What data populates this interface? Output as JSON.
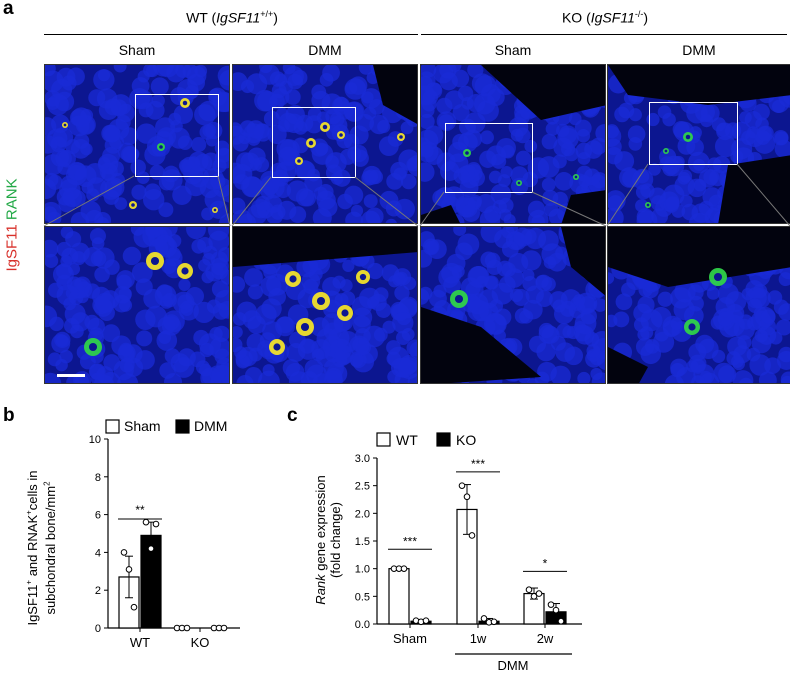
{
  "panel_a": {
    "letter": "a",
    "wt_group": {
      "prefix": "WT (",
      "gene": "IgSF11",
      "sup": "+/+",
      "suffix": ")"
    },
    "ko_group": {
      "prefix": "KO (",
      "gene": "IgSF11",
      "sup": "-/-",
      "suffix": ")"
    },
    "columns": [
      "Sham",
      "DMM",
      "Sham",
      "DMM"
    ],
    "stain_red": "IgSF11",
    "stain_green": "RANK",
    "colors": {
      "nuclei": "#1a2bd6",
      "rank": "#2fd14a",
      "merge": "#f2e22a",
      "igsf11": "#d8302a"
    }
  },
  "panel_b": {
    "letter": "b",
    "legend": [
      "Sham",
      "DMM"
    ],
    "ylabel_parts": {
      "a": "IgSF11",
      "a_sup": "+",
      "b": " and RNAK",
      "b_sup": "+",
      "c": "cells in",
      "line2": "subchondral bone/mm",
      "line2_sup": "2"
    },
    "sig": "**"
  },
  "panel_c": {
    "letter": "c",
    "legend": [
      "WT",
      "KO"
    ],
    "ylabel_italic": "Rank",
    "ylabel_rest": " gene expression",
    "ylabel_line2": "(fold change)",
    "group_label": "DMM",
    "sigs": [
      "***",
      "***",
      "*"
    ]
  },
  "chart_data": [
    {
      "type": "bar",
      "categories": [
        "WT",
        "KO"
      ],
      "series": [
        {
          "name": "Sham",
          "values": [
            2.7,
            0.0
          ],
          "errors": [
            1.1,
            0.0
          ],
          "points": [
            [
              4.0,
              3.1,
              1.1
            ],
            [
              0,
              0,
              0
            ]
          ]
        },
        {
          "name": "DMM",
          "values": [
            4.9,
            0.0
          ],
          "errors": [
            0.7,
            0.0
          ],
          "points": [
            [
              5.6,
              4.2,
              5.5
            ],
            [
              0,
              0,
              0
            ]
          ]
        }
      ],
      "ylim": [
        0,
        10
      ],
      "yticks": [
        "0",
        "2",
        "4",
        "6",
        "8",
        "10"
      ],
      "legend": "top",
      "significance": [
        {
          "between": [
            "WT-Sham",
            "WT-DMM"
          ],
          "label": "**"
        }
      ]
    },
    {
      "type": "bar",
      "categories": [
        "Sham",
        "1w",
        "2w"
      ],
      "series": [
        {
          "name": "WT",
          "values": [
            1.0,
            2.07,
            0.55
          ],
          "errors": [
            0.0,
            0.45,
            0.1
          ],
          "points": [
            [
              1.0,
              1.0,
              1.0
            ],
            [
              2.5,
              2.3,
              1.6
            ],
            [
              0.62,
              0.5,
              0.55
            ]
          ]
        },
        {
          "name": "KO",
          "values": [
            0.05,
            0.05,
            0.22
          ],
          "errors": [
            0.03,
            0.05,
            0.15
          ],
          "points": [
            [
              0.06,
              0.04,
              0.06
            ],
            [
              0.1,
              0.03,
              0.04
            ],
            [
              0.35,
              0.25,
              0.05
            ]
          ]
        }
      ],
      "ylim": [
        0,
        3.0
      ],
      "yticks": [
        "0.0",
        "0.5",
        "1.0",
        "1.5",
        "2.0",
        "2.5",
        "3.0"
      ],
      "legend": "top",
      "significance": [
        {
          "category": "Sham",
          "label": "***"
        },
        {
          "category": "1w",
          "label": "***"
        },
        {
          "category": "2w",
          "label": "*"
        }
      ]
    }
  ]
}
